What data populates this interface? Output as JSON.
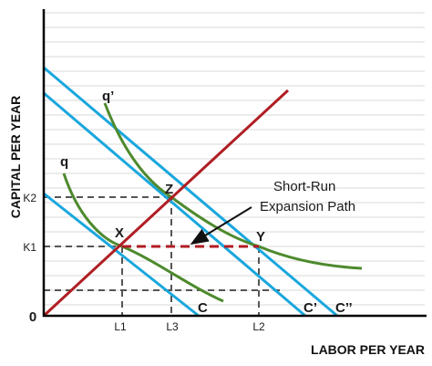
{
  "axes": {
    "x_title": "LABOR PER YEAR",
    "y_title": "CAPITAL PER YEAR",
    "origin": "0"
  },
  "tick_labels": {
    "k1": "K1",
    "k2": "K2",
    "l1": "L1",
    "l3": "L3",
    "l2": "L2"
  },
  "points": {
    "x": "X",
    "y": "Y",
    "z": "Z"
  },
  "isocosts": {
    "c": "C",
    "c_prime": "C’",
    "c_double_prime": "C’’"
  },
  "isoquants": {
    "q": "q",
    "q_prime": "q’"
  },
  "annotation": {
    "line1": "Short-Run",
    "line2": "Expansion Path"
  },
  "colors": {
    "isocost": "#1aa7dd",
    "isoquant": "#4e8a2e",
    "expansion_path": "#b01e23",
    "short_run_path": "#b01e23",
    "guide": "#555555",
    "grid": "#d9d9d9",
    "axis": "#000000"
  }
}
